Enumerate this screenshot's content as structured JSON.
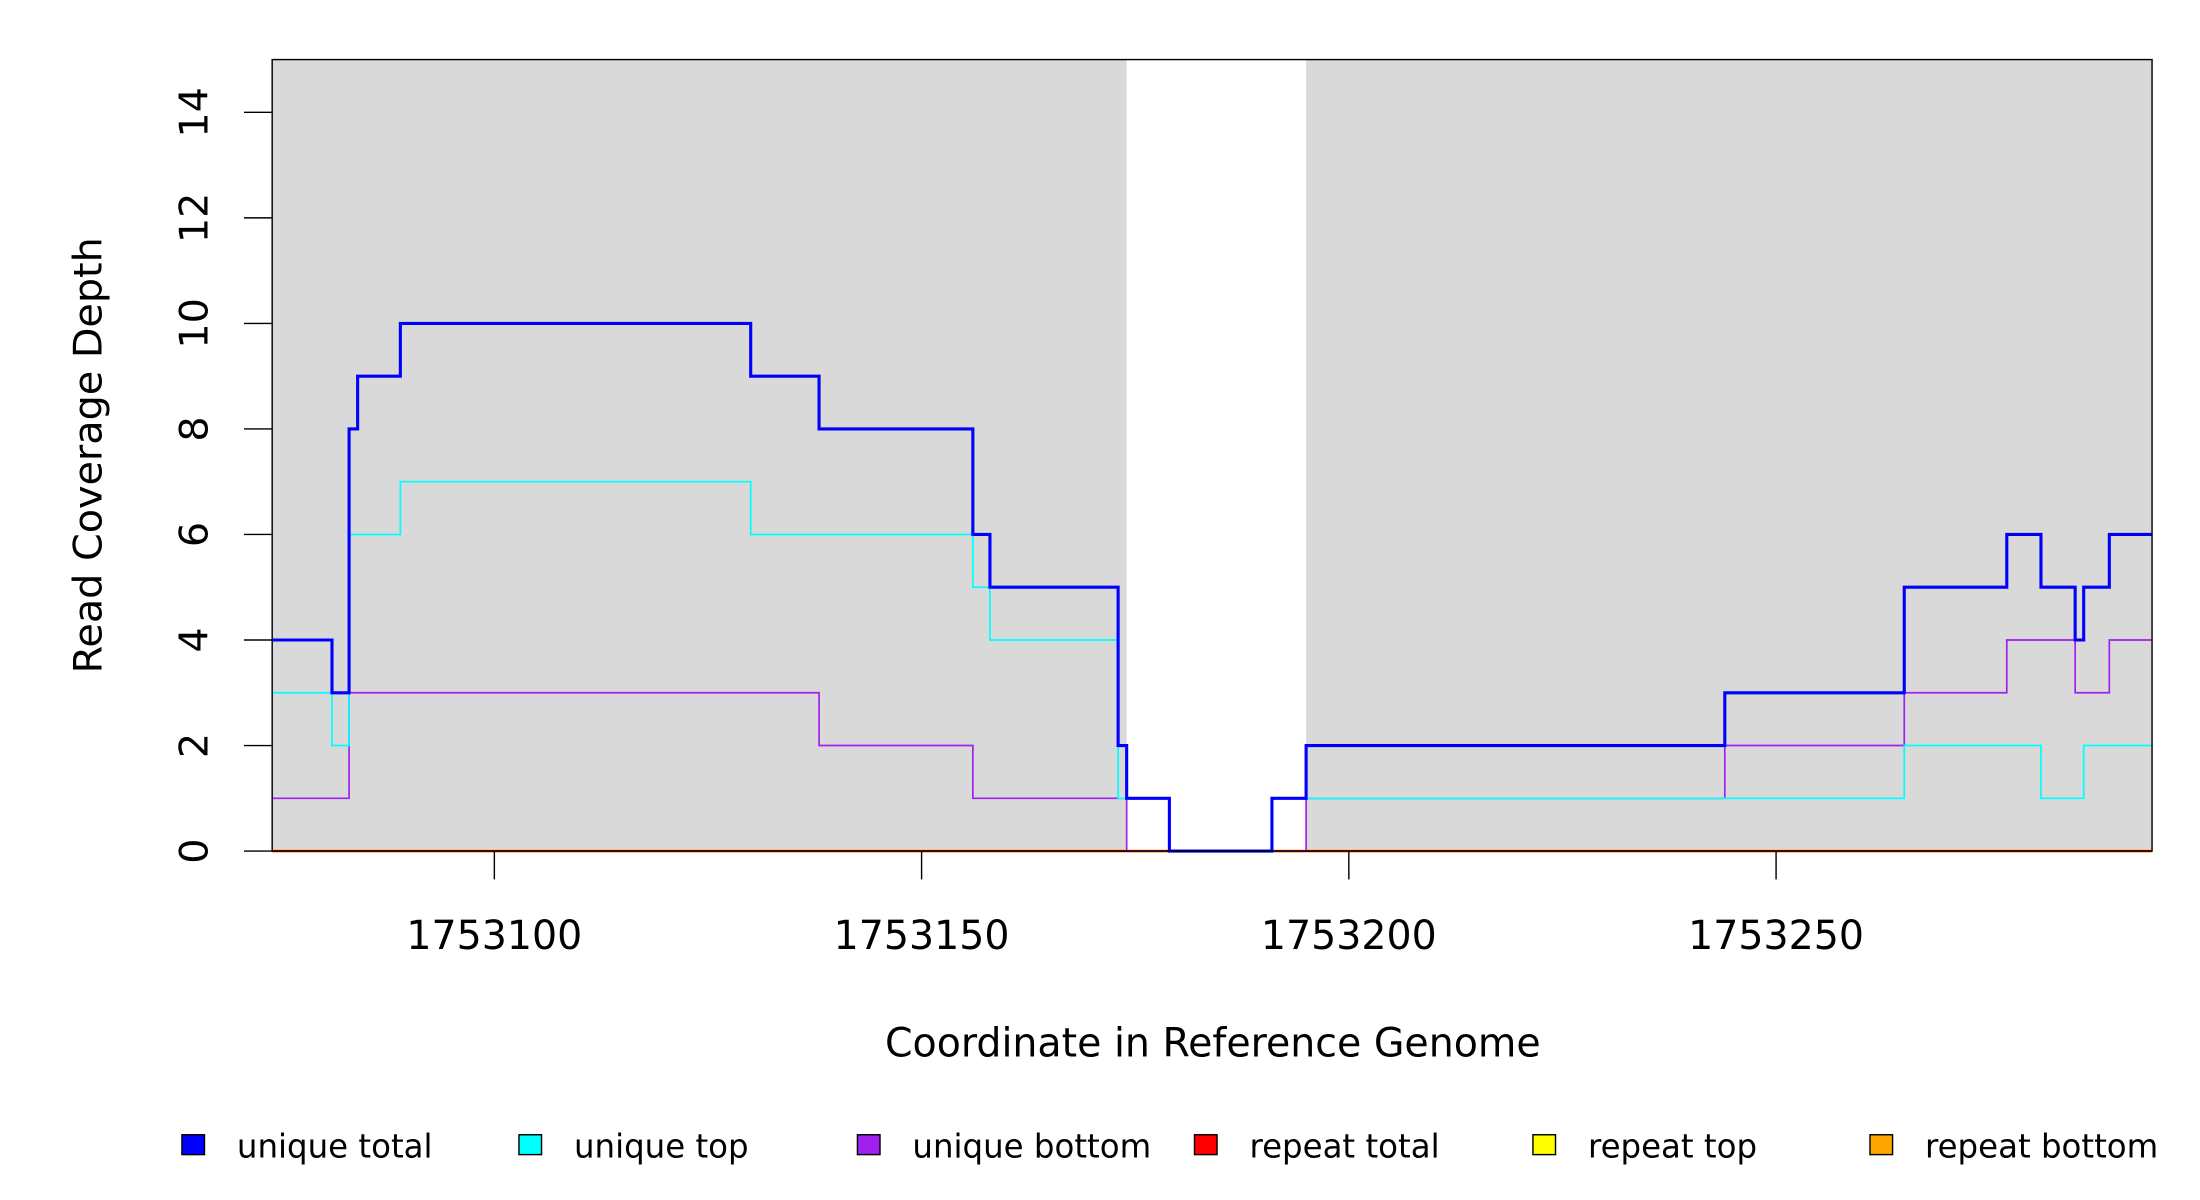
{
  "chart_data": {
    "type": "line",
    "step": true,
    "title": "",
    "xlabel": "Coordinate in Reference Genome",
    "ylabel": "Read Coverage Depth",
    "xlim": [
      1753074,
      1753294
    ],
    "ylim": [
      0,
      15
    ],
    "xticks": [
      1753100,
      1753150,
      1753200,
      1753250
    ],
    "xtick_labels": [
      "1753100",
      "1753150",
      "1753200",
      "1753250"
    ],
    "yticks": [
      0,
      2,
      4,
      6,
      8,
      10,
      12,
      14
    ],
    "ytick_labels": [
      "0",
      "2",
      "4",
      "6",
      "8",
      "10",
      "12",
      "14"
    ],
    "shaded_regions": [
      [
        1753074,
        1753174
      ],
      [
        1753195,
        1753294
      ]
    ],
    "shade_color": "#d9d9d9",
    "legend_position": "bottom",
    "series": [
      {
        "name": "unique total",
        "color": "#0000ff",
        "width": 2.2,
        "breaks": [
          1753074,
          1753081,
          1753083,
          1753084,
          1753089,
          1753130,
          1753138,
          1753156,
          1753158,
          1753173,
          1753174,
          1753179,
          1753191,
          1753195,
          1753244,
          1753265,
          1753277,
          1753281,
          1753285,
          1753286,
          1753289,
          1753294
        ],
        "values": [
          4,
          3,
          8,
          9,
          10,
          9,
          8,
          6,
          5,
          2,
          1,
          0,
          1,
          2,
          3,
          5,
          6,
          5,
          4,
          5,
          6
        ]
      },
      {
        "name": "unique top",
        "color": "#00ffff",
        "width": 1.2,
        "breaks": [
          1753074,
          1753081,
          1753083,
          1753089,
          1753130,
          1753156,
          1753158,
          1753173,
          1753179,
          1753191,
          1753265,
          1753281,
          1753286,
          1753294
        ],
        "values": [
          3,
          2,
          6,
          7,
          6,
          5,
          4,
          1,
          0,
          1,
          2,
          1,
          2
        ]
      },
      {
        "name": "unique bottom",
        "color": "#a020f0",
        "width": 1.2,
        "breaks": [
          1753074,
          1753083,
          1753138,
          1753156,
          1753174,
          1753195,
          1753244,
          1753265,
          1753277,
          1753285,
          1753289,
          1753294
        ],
        "values": [
          1,
          3,
          2,
          1,
          0,
          1,
          2,
          3,
          4,
          3,
          4
        ]
      },
      {
        "name": "repeat total",
        "color": "#ff0000",
        "width": 1.5,
        "breaks": [
          1753074,
          1753294
        ],
        "values": [
          0
        ]
      },
      {
        "name": "repeat top",
        "color": "#ffff00",
        "width": 1.5,
        "breaks": [
          1753074,
          1753294
        ],
        "values": [
          0
        ]
      },
      {
        "name": "repeat bottom",
        "color": "#ffa500",
        "width": 2,
        "breaks": [
          1753074,
          1753294
        ],
        "values": [
          0
        ]
      }
    ]
  }
}
